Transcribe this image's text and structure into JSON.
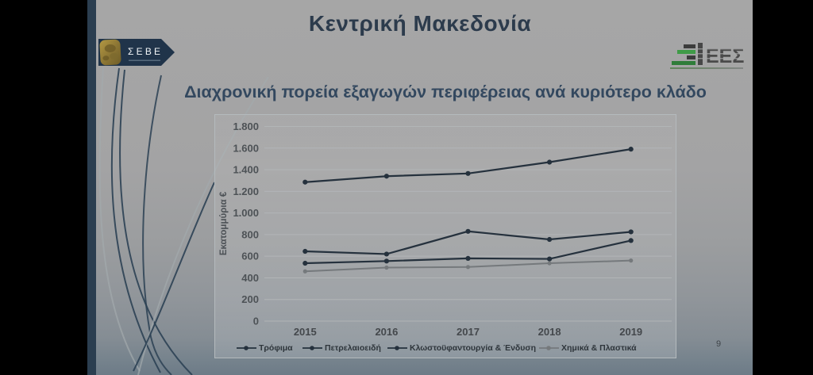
{
  "slide": {
    "title": "Κεντρική Μακεδονία",
    "subtitle": "Διαχρονική πορεία εξαγωγών περιφέρειας ανά κυριότερο κλάδο",
    "page_number": "9",
    "colors": {
      "title": "#2c3b4c",
      "subtitle": "#33485f",
      "accent_bar": "#2b3e50",
      "dark_series": "#25313d",
      "gray_series": "#75797c",
      "sebe_navy": "#20344a",
      "sebe_gold": "#a08839",
      "iees_green": "#3f9b47"
    },
    "logos": {
      "sebe_text": "ΣΕΒΕ",
      "iees_text": "ΕΕΣ"
    }
  },
  "chart_data": {
    "type": "line",
    "categories": [
      "2015",
      "2016",
      "2017",
      "2018",
      "2019"
    ],
    "series": [
      {
        "name": "Τρόφιμα",
        "values": [
          1285,
          1340,
          1365,
          1470,
          1590
        ],
        "color": "#25313d"
      },
      {
        "name": "Πετρελαιοειδή",
        "values": [
          645,
          620,
          830,
          755,
          825
        ],
        "color": "#25313d"
      },
      {
        "name": "Κλωστοϋφαντουργία & Ένδυση",
        "values": [
          535,
          555,
          580,
          575,
          745
        ],
        "color": "#25313d"
      },
      {
        "name": "Χημικά & Πλαστικά",
        "values": [
          460,
          495,
          500,
          535,
          560
        ],
        "color": "#75797c"
      }
    ],
    "ylabel": "Εκατομμύρια €",
    "ylim": [
      0,
      1800
    ],
    "ytick_step": 200,
    "grid": true,
    "legend_position": "bottom"
  }
}
